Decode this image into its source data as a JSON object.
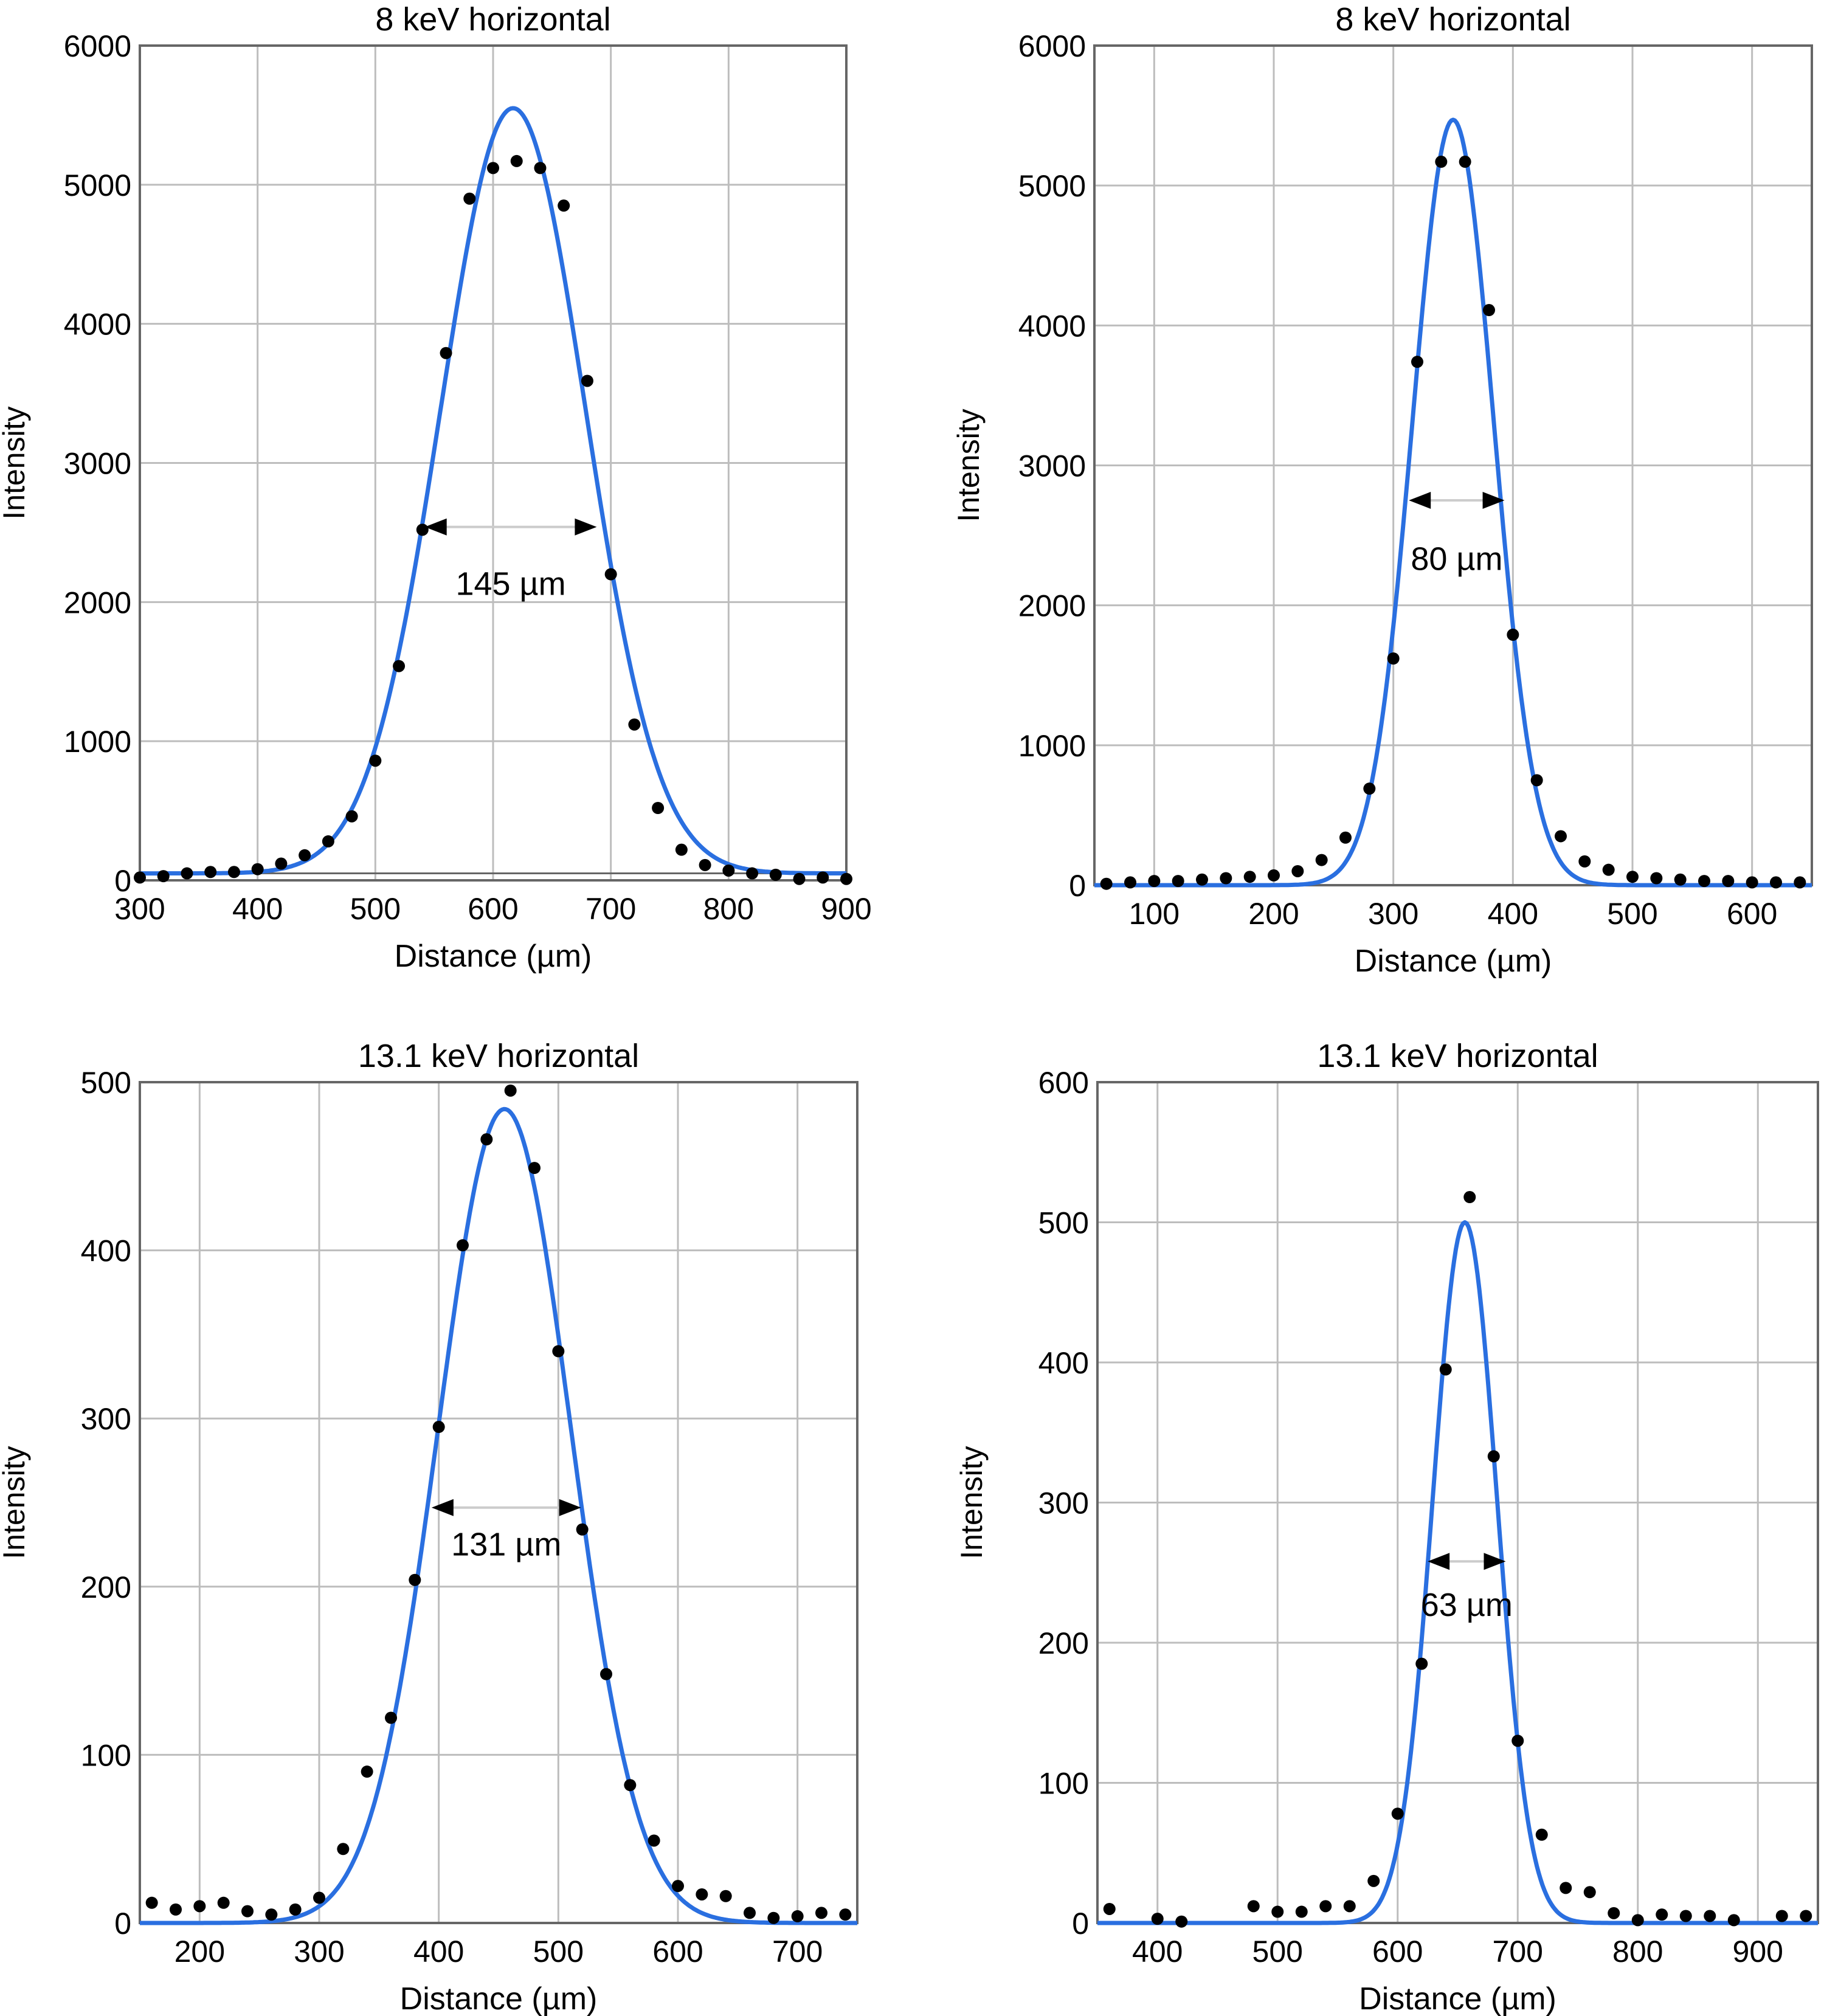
{
  "colors": {
    "curve": "#2a6fe0",
    "grid": "#bdbdbd",
    "frame": "#666666",
    "marker": "#000000",
    "arrow": "#000000",
    "background": "#ffffff"
  },
  "chart_data": [
    {
      "type": "scatter",
      "title": "8 keV horizontal",
      "xlabel": "Distance (µm)",
      "ylabel": "Intensity",
      "xlim": [
        300,
        900
      ],
      "ylim": [
        0,
        6000
      ],
      "xticks": [
        300,
        400,
        500,
        600,
        700,
        800,
        900
      ],
      "yticks": [
        0,
        1000,
        2000,
        3000,
        4000,
        5000,
        6000
      ],
      "grid": true,
      "baseline": 50,
      "fit": {
        "type": "gaussian",
        "amplitude": 5500,
        "center": 617,
        "fwhm": 145,
        "offset": 50
      },
      "annotation": {
        "text": "145 µm",
        "arrow_x": [
          542,
          688
        ],
        "arrow_y": 2540,
        "label_y": 2130
      },
      "series": [
        {
          "x": [
            300,
            320,
            340,
            360,
            380,
            400,
            420,
            440,
            460,
            480,
            500,
            520,
            540,
            560,
            580,
            600,
            620,
            640,
            660,
            680,
            700,
            720,
            740,
            760,
            780,
            800,
            820,
            840,
            860,
            880,
            900
          ],
          "y": [
            20,
            30,
            50,
            60,
            60,
            80,
            120,
            180,
            280,
            460,
            860,
            1540,
            2520,
            3790,
            4900,
            5120,
            5170,
            5120,
            4850,
            3590,
            2200,
            1120,
            520,
            220,
            110,
            70,
            50,
            40,
            10,
            20,
            10
          ]
        }
      ]
    },
    {
      "type": "scatter",
      "title": "8 keV horizontal",
      "xlabel": "Distance (µm)",
      "ylabel": "Intensity",
      "xlim": [
        50,
        650
      ],
      "ylim": [
        0,
        6000
      ],
      "xticks": [
        100,
        200,
        300,
        400,
        500,
        600
      ],
      "yticks": [
        0,
        1000,
        2000,
        3000,
        4000,
        5000,
        6000
      ],
      "grid": true,
      "baseline": 0,
      "fit": {
        "type": "gaussian",
        "amplitude": 5470,
        "center": 350,
        "fwhm": 80,
        "offset": 0
      },
      "annotation": {
        "text": "80 µm",
        "arrow_x": [
          313,
          393
        ],
        "arrow_y": 2750,
        "label_y": 2330
      },
      "series": [
        {
          "x": [
            60,
            80,
            100,
            120,
            140,
            160,
            180,
            200,
            220,
            240,
            260,
            280,
            300,
            320,
            340,
            360,
            380,
            400,
            420,
            440,
            460,
            480,
            500,
            520,
            540,
            560,
            580,
            600,
            620,
            640
          ],
          "y": [
            10,
            20,
            30,
            30,
            40,
            50,
            60,
            70,
            100,
            180,
            340,
            690,
            1620,
            3740,
            5170,
            5170,
            4110,
            1790,
            750,
            350,
            170,
            110,
            60,
            50,
            40,
            30,
            30,
            20,
            20,
            20
          ]
        }
      ]
    },
    {
      "type": "scatter",
      "title": "13.1 keV horizontal",
      "xlabel": "Distance (µm)",
      "ylabel": "Intensity",
      "xlim": [
        150,
        750
      ],
      "ylim": [
        0,
        500
      ],
      "xticks": [
        200,
        300,
        400,
        500,
        600,
        700
      ],
      "yticks": [
        0,
        100,
        200,
        300,
        400,
        500
      ],
      "grid": true,
      "baseline": 0,
      "fit": {
        "type": "gaussian",
        "amplitude": 484,
        "center": 455,
        "fwhm": 131,
        "offset": 0
      },
      "annotation": {
        "text": "131 µm",
        "arrow_x": [
          394,
          519
        ],
        "arrow_y": 247,
        "label_y": 225
      },
      "series": [
        {
          "x": [
            160,
            180,
            200,
            220,
            240,
            260,
            280,
            300,
            320,
            340,
            360,
            380,
            400,
            420,
            440,
            460,
            480,
            500,
            520,
            540,
            560,
            580,
            600,
            620,
            640,
            660,
            680,
            700,
            720,
            740
          ],
          "y": [
            12,
            8,
            10,
            12,
            7,
            5,
            8,
            15,
            44,
            90,
            122,
            204,
            295,
            403,
            466,
            495,
            449,
            340,
            234,
            148,
            82,
            49,
            22,
            17,
            16,
            6,
            3,
            4,
            6,
            5
          ]
        }
      ]
    },
    {
      "type": "scatter",
      "title": "13.1 keV horizontal",
      "xlabel": "Distance (µm)",
      "ylabel": "Intensity",
      "xlim": [
        350,
        950
      ],
      "ylim": [
        0,
        600
      ],
      "xticks": [
        400,
        500,
        600,
        700,
        800,
        900
      ],
      "yticks": [
        0,
        100,
        200,
        300,
        400,
        500,
        600
      ],
      "grid": true,
      "baseline": 0,
      "fit": {
        "type": "gaussian",
        "amplitude": 500,
        "center": 656,
        "fwhm": 63,
        "offset": 0
      },
      "annotation": {
        "text": "63 µm",
        "arrow_x": [
          625,
          690
        ],
        "arrow_y": 258,
        "label_y": 227
      },
      "series": [
        {
          "x": [
            360,
            400,
            420,
            480,
            500,
            520,
            540,
            560,
            580,
            600,
            620,
            640,
            660,
            680,
            700,
            720,
            740,
            760,
            780,
            800,
            820,
            840,
            860,
            880,
            920,
            940
          ],
          "y": [
            10,
            3,
            1,
            12,
            8,
            8,
            12,
            12,
            30,
            78,
            185,
            395,
            518,
            333,
            130,
            63,
            25,
            22,
            7,
            2,
            6,
            5,
            5,
            2,
            5,
            5
          ]
        }
      ]
    }
  ]
}
